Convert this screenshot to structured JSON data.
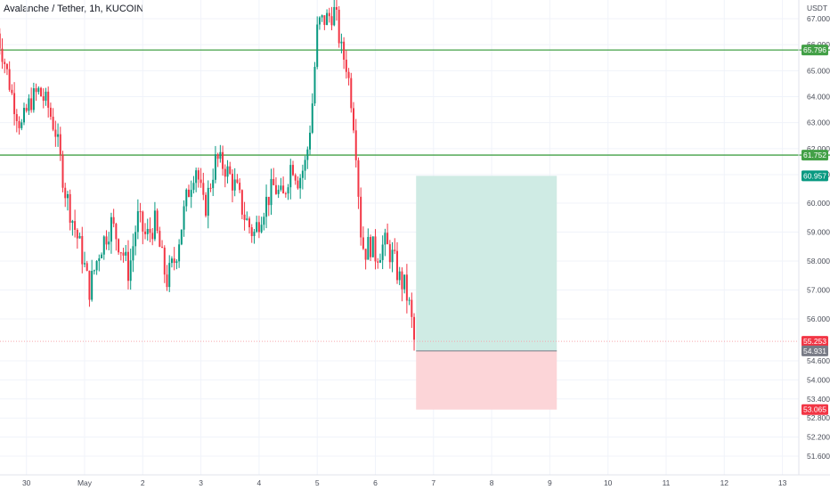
{
  "chart_data": {
    "type": "candlestick",
    "title": "Avalanche / Tether, 1h, KUCOIN",
    "currency": "USDT",
    "y_ticks": [
      67.0,
      66.0,
      65.0,
      64.0,
      63.0,
      62.0,
      61.0,
      60.0,
      59.0,
      58.0,
      57.0,
      56.0,
      54.6,
      54.0,
      53.4,
      52.8,
      52.2,
      51.6
    ],
    "y_tick_labels": [
      "67.000",
      "66.000",
      "65.000",
      "64.000",
      "63.000",
      "62.000",
      "61.000",
      "60.000",
      "59.000",
      "58.000",
      "57.000",
      "56.000",
      "54.600",
      "54.000",
      "53.400",
      "52.800",
      "52.200",
      "51.600"
    ],
    "x_ticks": [
      {
        "label": "30",
        "day": -1
      },
      {
        "label": "May",
        "day": 0
      },
      {
        "label": "2",
        "day": 1
      },
      {
        "label": "3",
        "day": 2
      },
      {
        "label": "4",
        "day": 3
      },
      {
        "label": "5",
        "day": 4
      },
      {
        "label": "6",
        "day": 5
      },
      {
        "label": "7",
        "day": 6
      },
      {
        "label": "8",
        "day": 7
      },
      {
        "label": "9",
        "day": 8
      },
      {
        "label": "10",
        "day": 9
      },
      {
        "label": "11",
        "day": 10
      },
      {
        "label": "12",
        "day": 11
      },
      {
        "label": "13",
        "day": 12
      }
    ],
    "horizontal_levels": [
      {
        "value": 65.796,
        "label": "65.796",
        "color": "#43a047"
      },
      {
        "value": 61.752,
        "label": "61.752",
        "color": "#43a047"
      }
    ],
    "price_badges": [
      {
        "value": 60.957,
        "label": "60.957",
        "color": "#089981"
      },
      {
        "value": 55.253,
        "label": "55.253",
        "color": "#f23645"
      },
      {
        "value": 54.931,
        "label": "54.931",
        "color": "#787b86"
      },
      {
        "value": 53.065,
        "label": "53.065",
        "color": "#f23645"
      }
    ],
    "current_price": 55.253,
    "position": {
      "type": "long",
      "entry": 54.931,
      "target": 60.957,
      "stop": 53.065,
      "start_day": 5.7,
      "end_day": 8.12
    },
    "candles_anchor_day": -1.5,
    "colors": {
      "up": "#089981",
      "down": "#f23645",
      "profit_zone": "#cfebe4",
      "loss_zone": "#fcd5d8"
    },
    "price_path": [
      [
        -1.5,
        66.8
      ],
      [
        -1.35,
        65.5
      ],
      [
        -1.2,
        64.0
      ],
      [
        -1.05,
        62.8
      ],
      [
        -0.9,
        63.8
      ],
      [
        -0.75,
        64.2
      ],
      [
        -0.6,
        63.7
      ],
      [
        -0.45,
        62.6
      ],
      [
        -0.3,
        60.5
      ],
      [
        -0.15,
        59.3
      ],
      [
        0.0,
        58.2
      ],
      [
        0.12,
        57.0
      ],
      [
        0.3,
        58.4
      ],
      [
        0.5,
        59.3
      ],
      [
        0.7,
        58.3
      ],
      [
        0.8,
        57.6
      ],
      [
        0.95,
        59.5
      ],
      [
        1.1,
        58.8
      ],
      [
        1.25,
        59.3
      ],
      [
        1.45,
        57.3
      ],
      [
        1.6,
        58.1
      ],
      [
        1.8,
        60.2
      ],
      [
        1.95,
        61.4
      ],
      [
        2.1,
        59.7
      ],
      [
        2.3,
        61.6
      ],
      [
        2.45,
        61.3
      ],
      [
        2.65,
        60.5
      ],
      [
        2.8,
        59.5
      ],
      [
        2.95,
        58.9
      ],
      [
        3.1,
        59.8
      ],
      [
        3.3,
        60.6
      ],
      [
        3.45,
        60.1
      ],
      [
        3.6,
        61.5
      ],
      [
        3.72,
        60.8
      ],
      [
        3.85,
        61.5
      ],
      [
        3.95,
        63.5
      ],
      [
        4.05,
        66.8
      ],
      [
        4.2,
        67.0
      ],
      [
        4.35,
        67.3
      ],
      [
        4.45,
        65.8
      ],
      [
        4.55,
        65.2
      ],
      [
        4.65,
        63.5
      ],
      [
        4.72,
        61.7
      ],
      [
        4.78,
        59.2
      ],
      [
        4.85,
        58.3
      ],
      [
        4.95,
        58.6
      ],
      [
        5.05,
        58.2
      ],
      [
        5.2,
        58.6
      ],
      [
        5.35,
        58.1
      ],
      [
        5.45,
        57.4
      ],
      [
        5.55,
        57.1
      ],
      [
        5.65,
        56.2
      ],
      [
        5.7,
        55.25
      ]
    ]
  }
}
